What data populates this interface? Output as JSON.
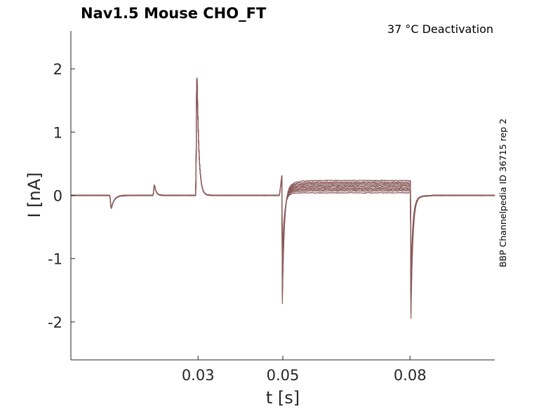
{
  "chart_data": {
    "type": "line",
    "title": "Nav1.5  Mouse  CHO_FT",
    "subtitle": "37 °C  Deactivation",
    "side_label": "BBP Channelpedia ID 36715 rep 2",
    "xlabel": "t [s]",
    "ylabel": "I [nA]",
    "xlim": [
      0,
      0.1
    ],
    "ylim": [
      -2.6,
      2.6
    ],
    "x_ticks": [
      0.03,
      0.05,
      0.08
    ],
    "x_tick_labels": [
      "0.03",
      "0.05",
      "0.08"
    ],
    "y_ticks": [
      2,
      1,
      0,
      -1,
      -2
    ],
    "y_tick_labels": [
      "2",
      "1",
      "0",
      "-1",
      "-2"
    ],
    "grid": false,
    "line_color": "#8a5a5a",
    "protocol": {
      "artifact_neg_t": 0.0095,
      "artifact_neg_peak": -0.22,
      "artifact_pos_t": 0.0197,
      "artifact_pos_peak": 0.18,
      "spike_t": 0.0297,
      "spike_peak": 2.2,
      "step_start_t": 0.0498,
      "step_on_transient": 0.32,
      "step_on_peak": -2.2,
      "step_end_t": 0.0802,
      "step_off_peak": -2.08
    },
    "series": [
      {
        "plateau": 0.04
      },
      {
        "plateau": 0.07
      },
      {
        "plateau": 0.09
      },
      {
        "plateau": 0.11
      },
      {
        "plateau": 0.13
      },
      {
        "plateau": 0.15
      },
      {
        "plateau": 0.17
      },
      {
        "plateau": 0.19
      },
      {
        "plateau": 0.21
      },
      {
        "plateau": 0.235
      }
    ]
  }
}
